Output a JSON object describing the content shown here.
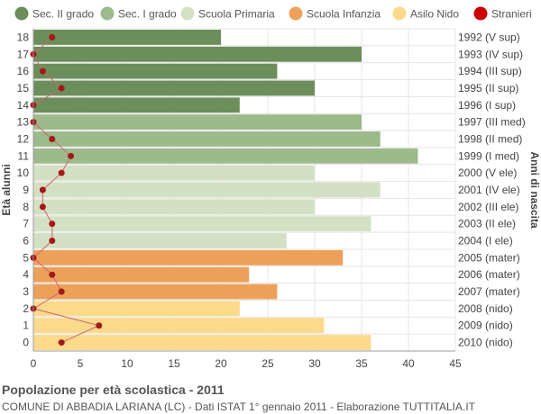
{
  "title": "Popolazione per età scolastica - 2011",
  "subtitle": "COMUNE DI ABBADIA LARIANA (LC) - Dati ISTAT 1° gennaio 2011 - Elaborazione TUTTITALIA.IT",
  "chart_data": {
    "type": "bar",
    "orientation": "horizontal",
    "ylabel": "Età alunni",
    "ylabel_right": "Anni di nascita",
    "xlim": [
      0,
      45
    ],
    "xticks": [
      0,
      5,
      10,
      15,
      20,
      25,
      30,
      35,
      40,
      45
    ],
    "grid": true,
    "legend_position": "top",
    "legend": [
      {
        "name": "Sec. II grado",
        "color": "#6b8e5a",
        "marker": "circle"
      },
      {
        "name": "Sec. I grado",
        "color": "#9dba8b",
        "marker": "circle"
      },
      {
        "name": "Scuola Primaria",
        "color": "#d4e0c4",
        "marker": "circle"
      },
      {
        "name": "Scuola Infanzia",
        "color": "#eda05a",
        "marker": "circle"
      },
      {
        "name": "Asilo Nido",
        "color": "#fdd98b",
        "marker": "circle"
      },
      {
        "name": "Stranieri",
        "color": "#cc0000",
        "marker": "circle"
      }
    ],
    "rows": [
      {
        "age": "18",
        "birth": "1992 (V sup)",
        "value": 20,
        "stranieri": 2,
        "group": 0
      },
      {
        "age": "17",
        "birth": "1993 (IV sup)",
        "value": 35,
        "stranieri": 0,
        "group": 0
      },
      {
        "age": "16",
        "birth": "1994 (III sup)",
        "value": 26,
        "stranieri": 1,
        "group": 0
      },
      {
        "age": "15",
        "birth": "1995 (II sup)",
        "value": 30,
        "stranieri": 3,
        "group": 0
      },
      {
        "age": "14",
        "birth": "1996 (I sup)",
        "value": 22,
        "stranieri": 0,
        "group": 0
      },
      {
        "age": "13",
        "birth": "1997 (III med)",
        "value": 35,
        "stranieri": 0,
        "group": 1
      },
      {
        "age": "12",
        "birth": "1998 (II med)",
        "value": 37,
        "stranieri": 2,
        "group": 1
      },
      {
        "age": "11",
        "birth": "1999 (I med)",
        "value": 41,
        "stranieri": 4,
        "group": 1
      },
      {
        "age": "10",
        "birth": "2000 (V ele)",
        "value": 30,
        "stranieri": 3,
        "group": 2
      },
      {
        "age": "9",
        "birth": "2001 (IV ele)",
        "value": 37,
        "stranieri": 1,
        "group": 2
      },
      {
        "age": "8",
        "birth": "2002 (III ele)",
        "value": 30,
        "stranieri": 1,
        "group": 2
      },
      {
        "age": "7",
        "birth": "2003 (II ele)",
        "value": 36,
        "stranieri": 2,
        "group": 2
      },
      {
        "age": "6",
        "birth": "2004 (I ele)",
        "value": 27,
        "stranieri": 2,
        "group": 2
      },
      {
        "age": "5",
        "birth": "2005 (mater)",
        "value": 33,
        "stranieri": 0,
        "group": 3
      },
      {
        "age": "4",
        "birth": "2006 (mater)",
        "value": 23,
        "stranieri": 2,
        "group": 3
      },
      {
        "age": "3",
        "birth": "2007 (mater)",
        "value": 26,
        "stranieri": 3,
        "group": 3
      },
      {
        "age": "2",
        "birth": "2008 (nido)",
        "value": 22,
        "stranieri": 0,
        "group": 4
      },
      {
        "age": "1",
        "birth": "2009 (nido)",
        "value": 31,
        "stranieri": 7,
        "group": 4
      },
      {
        "age": "0",
        "birth": "2010 (nido)",
        "value": 36,
        "stranieri": 3,
        "group": 4
      }
    ],
    "colors": {
      "grid": "#e4e4e4",
      "axis": "#999999",
      "text": "#444444",
      "stranieri_line": "#c96a6a",
      "stranieri_dot": "#a31818"
    }
  }
}
